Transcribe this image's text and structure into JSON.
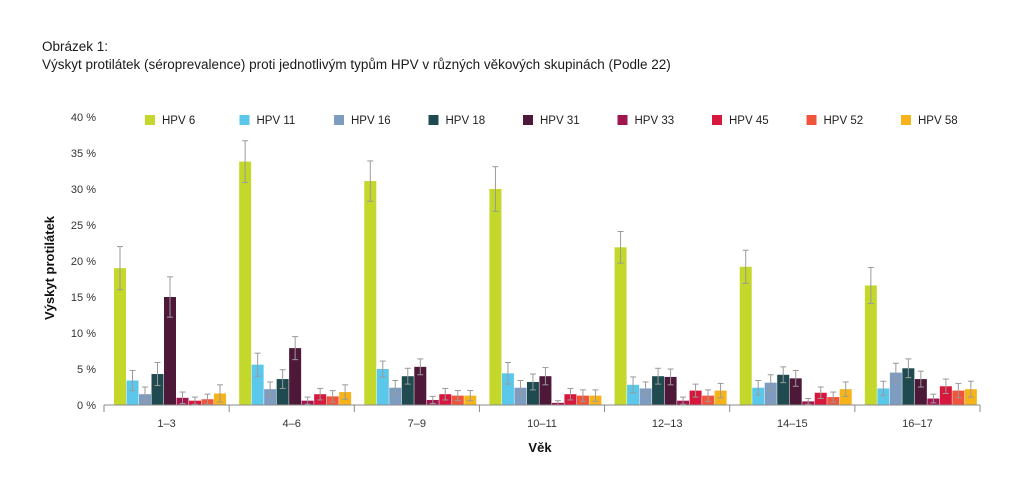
{
  "figure": {
    "caption_line1": "Obrázek 1:",
    "caption_line2": "Výskyt protilátek (séroprevalence) proti jednotlivým typům HPV v různých věkových skupinách (Podle 22)"
  },
  "chart_data": {
    "type": "bar",
    "xlabel": "Věk",
    "ylabel": "Výskyt protilátek",
    "ylim": [
      0,
      40
    ],
    "yticks": [
      "0 %",
      "5 %",
      "10 %",
      "15 %",
      "20 %",
      "25 %",
      "30 %",
      "35 %",
      "40 %"
    ],
    "legend_position": "top",
    "categories": [
      "1–3",
      "4–6",
      "7–9",
      "10–11",
      "12–13",
      "14–15",
      "16–17"
    ],
    "series": [
      {
        "name": "HPV 6",
        "color": "#c3d82b",
        "values": [
          19,
          33.8,
          31.1,
          30,
          21.9,
          19.2,
          16.6
        ],
        "err": [
          3,
          2.9,
          2.8,
          3.1,
          2.2,
          2.3,
          2.5
        ]
      },
      {
        "name": "HPV 11",
        "color": "#5bc8eb",
        "values": [
          3.4,
          5.6,
          5,
          4.4,
          2.8,
          2.4,
          2.3
        ],
        "err": [
          1.4,
          1.6,
          1.1,
          1.5,
          1.1,
          1,
          1
        ]
      },
      {
        "name": "HPV 16",
        "color": "#7d9cc0",
        "values": [
          1.5,
          2.2,
          2.4,
          2.4,
          2.3,
          3.1,
          4.5
        ],
        "err": [
          1,
          1,
          1,
          1,
          0.9,
          1.1,
          1.3
        ]
      },
      {
        "name": "HPV 18",
        "color": "#1f4a4f",
        "values": [
          4.3,
          3.6,
          4,
          3.2,
          4,
          4.2,
          5.1
        ],
        "err": [
          1.6,
          1.3,
          1.1,
          1.1,
          1.1,
          1.1,
          1.3
        ]
      },
      {
        "name": "HPV 31",
        "color": "#4e1838",
        "values": [
          15,
          7.9,
          5.3,
          4,
          3.9,
          3.7,
          3.6
        ],
        "err": [
          2.8,
          1.6,
          1.1,
          1.2,
          1.1,
          1.1,
          1.1
        ]
      },
      {
        "name": "HPV 33",
        "color": "#a0174f",
        "values": [
          1,
          0.6,
          0.7,
          0.3,
          0.6,
          0.5,
          0.9
        ],
        "err": [
          0.8,
          0.5,
          0.5,
          0.3,
          0.5,
          0.4,
          0.6
        ]
      },
      {
        "name": "HPV 45",
        "color": "#d7173c",
        "values": [
          0.6,
          1.5,
          1.5,
          1.5,
          2,
          1.7,
          2.6
        ],
        "err": [
          0.5,
          0.8,
          0.8,
          0.8,
          0.9,
          0.8,
          1
        ]
      },
      {
        "name": "HPV 52",
        "color": "#f0543a",
        "values": [
          0.8,
          1.2,
          1.3,
          1.3,
          1.3,
          1.1,
          2
        ],
        "err": [
          0.7,
          0.8,
          0.7,
          0.8,
          0.8,
          0.7,
          1
        ]
      },
      {
        "name": "HPV 58",
        "color": "#f7b31a",
        "values": [
          1.6,
          1.8,
          1.3,
          1.3,
          2,
          2.2,
          2.2
        ],
        "err": [
          1.2,
          1,
          0.7,
          0.8,
          1,
          1,
          1.1
        ]
      }
    ]
  }
}
